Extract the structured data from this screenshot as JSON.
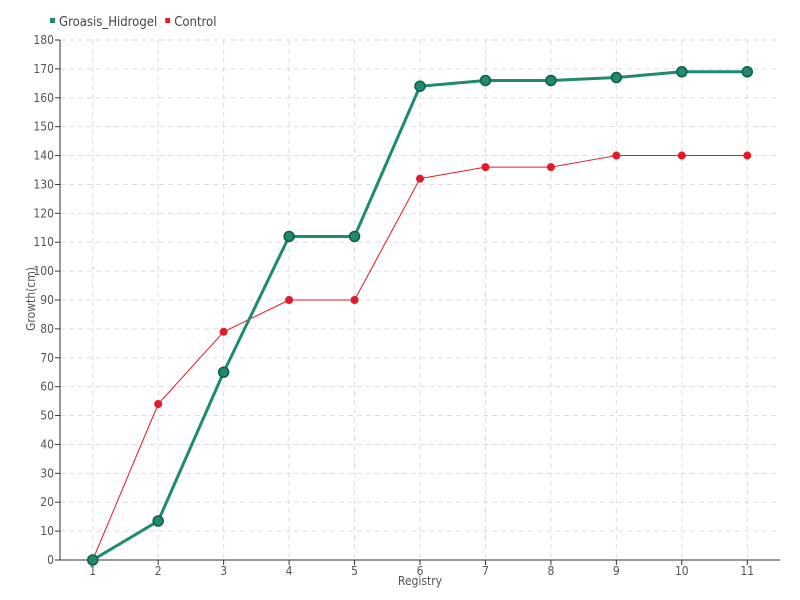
{
  "chart_data": {
    "type": "line",
    "title": "",
    "xlabel": "Registry",
    "ylabel": "Growth(cm)",
    "x": [
      1,
      2,
      3,
      4,
      5,
      6,
      7,
      8,
      9,
      10,
      11
    ],
    "xlim": [
      0.5,
      11.5
    ],
    "ylim": [
      0,
      180
    ],
    "ytick_step": 10,
    "grid": true,
    "legend_position": "top-left",
    "series": [
      {
        "name": "Groasis_Hidrogel",
        "color": "#1f8a6e",
        "values": [
          0,
          13.5,
          65,
          112,
          112,
          164,
          166,
          166,
          167,
          169,
          169
        ]
      },
      {
        "name": "Control",
        "color": "#e31a2a",
        "values": [
          0,
          54,
          79,
          90,
          90,
          132,
          136,
          136,
          140,
          140,
          140
        ]
      }
    ]
  }
}
